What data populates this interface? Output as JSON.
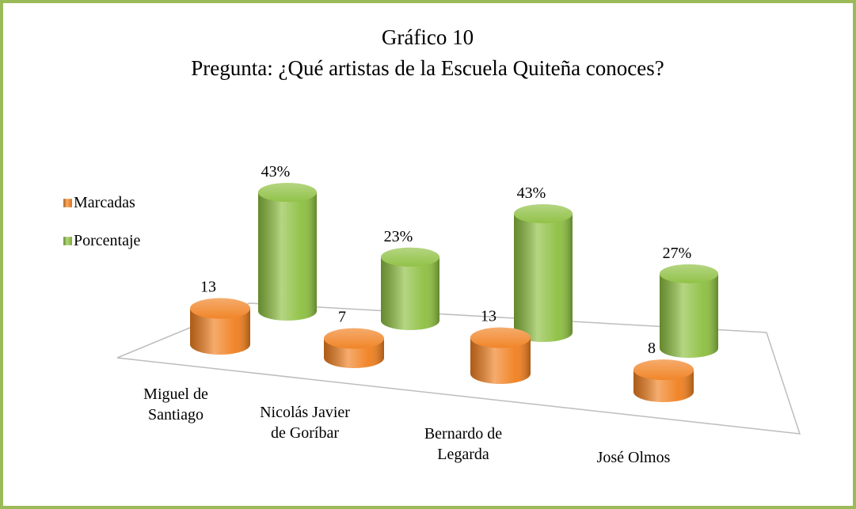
{
  "chart_data": {
    "type": "bar3d",
    "title": "Gráfico 10",
    "subtitle": "Pregunta: ¿Qué artistas de la Escuela Quiteña conoces?",
    "categories": [
      "Miguel de\nSantiago",
      "Nicolás Javier\nde Goríbar",
      "Bernardo de\nLegarda",
      "José Olmos"
    ],
    "series": [
      {
        "name": "Marcadas",
        "color": "#f07f1e",
        "values": [
          13,
          7,
          13,
          8
        ]
      },
      {
        "name": "Porcentaje",
        "color": "#8cbf3f",
        "values": [
          43,
          23,
          43,
          27
        ],
        "value_labels": [
          "43%",
          "23%",
          "43%",
          "27%"
        ]
      }
    ],
    "legend": "left"
  }
}
